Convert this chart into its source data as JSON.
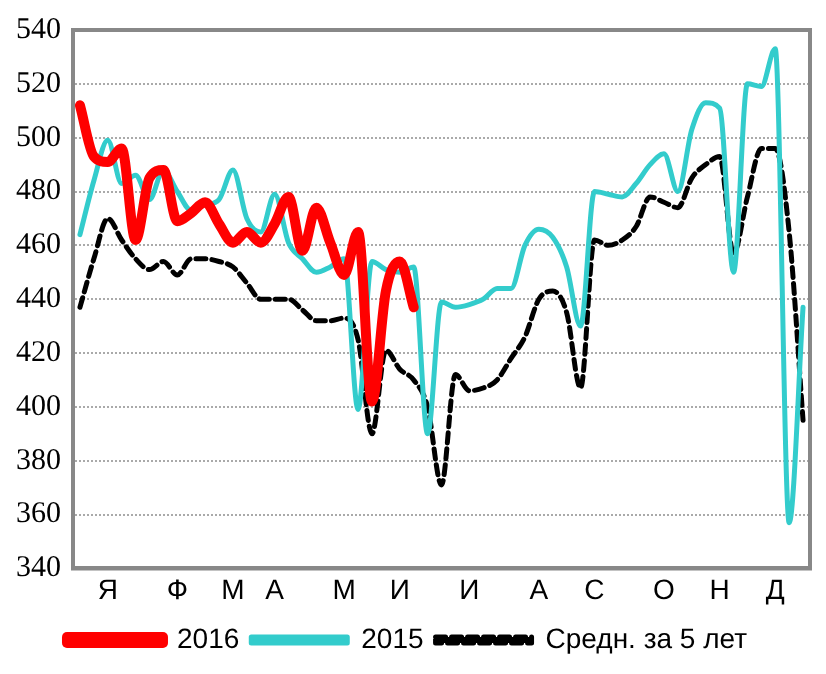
{
  "chart_data": {
    "type": "line",
    "ylim": [
      340,
      540
    ],
    "yticks": [
      340,
      360,
      380,
      400,
      420,
      440,
      460,
      480,
      500,
      520,
      540
    ],
    "categories": [
      null,
      null,
      "Я",
      null,
      null,
      null,
      null,
      "Ф",
      null,
      null,
      null,
      "М",
      null,
      null,
      "А",
      null,
      null,
      null,
      null,
      "М",
      null,
      null,
      null,
      "И",
      null,
      null,
      null,
      null,
      "И",
      null,
      null,
      null,
      null,
      "А",
      null,
      null,
      null,
      "С",
      null,
      null,
      null,
      null,
      "О",
      null,
      null,
      null,
      "Н",
      null,
      null,
      null,
      "Д",
      null,
      null
    ],
    "grid": "y",
    "legend": "bottom",
    "marker": "none",
    "series": [
      {
        "name": "2016",
        "color": "#ff0000",
        "line_style": "solid",
        "values": [
          512,
          493,
          491,
          496,
          462,
          485,
          488,
          469,
          472,
          476,
          468,
          461,
          465,
          461,
          468,
          478,
          458,
          474,
          461,
          449,
          465,
          402,
          443,
          454,
          437,
          null,
          null,
          null,
          null,
          null,
          null,
          null,
          null,
          null,
          null,
          null,
          null,
          null,
          null,
          null,
          null,
          null,
          null,
          null,
          null,
          null,
          null,
          null,
          null,
          null,
          null,
          null,
          null
        ]
      },
      {
        "name": "2015",
        "color": "#33cccc",
        "line_style": "solid",
        "values": [
          464,
          484,
          499,
          483,
          486,
          477,
          488,
          480,
          473,
          475,
          477,
          488,
          470,
          465,
          479,
          461,
          455,
          450,
          452,
          455,
          399,
          454,
          451,
          450,
          452,
          390,
          439,
          437,
          438,
          440,
          444,
          444,
          460,
          466,
          463,
          452,
          430,
          480,
          479,
          478,
          483,
          490,
          494,
          480,
          503,
          513,
          511,
          450,
          520,
          519,
          533,
          357,
          437
        ]
      },
      {
        "name": "Средн. за 5 лет",
        "color": "#000000",
        "line_style": "dashed",
        "values": [
          437,
          455,
          470,
          462,
          455,
          451,
          454,
          449,
          455,
          455,
          454,
          452,
          446,
          440,
          440,
          440,
          436,
          432,
          432,
          433,
          425,
          390,
          421,
          414,
          410,
          400,
          371,
          412,
          406,
          407,
          410,
          418,
          426,
          440,
          443,
          435,
          407,
          462,
          460,
          462,
          467,
          478,
          476,
          474,
          485,
          490,
          493,
          457,
          478,
          496,
          496,
          465,
          395
        ]
      }
    ]
  }
}
